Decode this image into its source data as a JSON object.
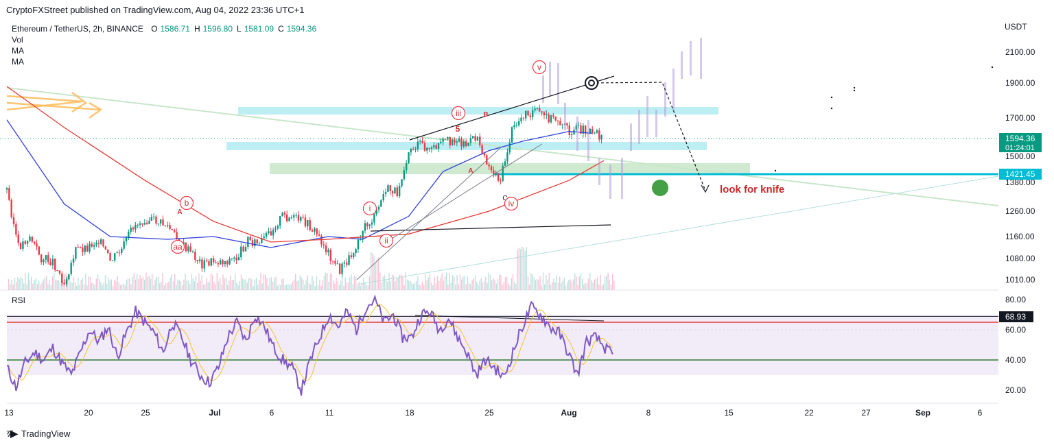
{
  "header": {
    "published": "CryptoFXStreet published on TradingView.com, Aug 04, 2022 23:36 UTC+1"
  },
  "legend": {
    "symbol": "Ethereum / TetherUS, 2h, BINANCE",
    "open_label": "O",
    "open": "1586.71",
    "high_label": "H",
    "high": "1596.80",
    "low_label": "L",
    "low": "1581.09",
    "close_label": "C",
    "close": "1594.36",
    "indicators": [
      "Vol",
      "MA",
      "MA"
    ]
  },
  "footer": {
    "brand": "TradingView",
    "logo": "tradingview-logo-icon"
  },
  "colors": {
    "up": "#089981",
    "down": "#f23645",
    "accent": "#00bcd4",
    "ma_fast": "#2f3fd8",
    "ma_slow": "#e53935",
    "rsi": "#7e57c2",
    "rsi_signal": "#fbc02d",
    "annotation": "#c2185b",
    "target_dot": "#43a047"
  },
  "chart_data": [
    {
      "type": "candlestick",
      "title": "Ethereum / TetherUS, 2h, BINANCE",
      "price_unit": "USDT",
      "y_ticks": [
        1010,
        1080,
        1160,
        1260,
        1380,
        1500,
        1700,
        1900,
        2100
      ],
      "y_tick_labels": [
        "1010.00",
        "1080.00",
        "1160.00",
        "1260.00",
        "1380.00",
        "1500.00",
        "1700.00",
        "1900.00",
        "2100.00"
      ],
      "x_tick_labels": [
        "13",
        "20",
        "25",
        "Jul",
        "6",
        "11",
        "18",
        "25",
        "Aug",
        "8",
        "15",
        "22",
        "27",
        "Sep",
        "6"
      ],
      "last_price": {
        "value": 1594.36,
        "label": "1594.36",
        "countdown": "01:24:01"
      },
      "horizontal_level": {
        "value": 1421.45,
        "label": "1421.45"
      },
      "price_path": [
        {
          "date": "Jun 13",
          "close": 1350
        },
        {
          "date": "Jun 14",
          "close": 1120
        },
        {
          "date": "Jun 15",
          "close": 1160
        },
        {
          "date": "Jun 16",
          "close": 1080
        },
        {
          "date": "Jun 17",
          "close": 1070
        },
        {
          "date": "Jun 18",
          "close": 1000
        },
        {
          "date": "Jun 19",
          "close": 1110
        },
        {
          "date": "Jun 20",
          "close": 1120
        },
        {
          "date": "Jun 21",
          "close": 1150
        },
        {
          "date": "Jun 22",
          "close": 1070
        },
        {
          "date": "Jun 23",
          "close": 1110
        },
        {
          "date": "Jun 24",
          "close": 1200
        },
        {
          "date": "Jun 25",
          "close": 1230
        },
        {
          "date": "Jun 26",
          "close": 1220
        },
        {
          "date": "Jun 27",
          "close": 1200
        },
        {
          "date": "Jun 28",
          "close": 1140
        },
        {
          "date": "Jun 29",
          "close": 1100
        },
        {
          "date": "Jun 30",
          "close": 1060
        },
        {
          "date": "Jul 1",
          "close": 1070
        },
        {
          "date": "Jul 2",
          "close": 1070
        },
        {
          "date": "Jul 3",
          "close": 1080
        },
        {
          "date": "Jul 4",
          "close": 1150
        },
        {
          "date": "Jul 5",
          "close": 1130
        },
        {
          "date": "Jul 6",
          "close": 1180
        },
        {
          "date": "Jul 7",
          "close": 1240
        },
        {
          "date": "Jul 8",
          "close": 1230
        },
        {
          "date": "Jul 9",
          "close": 1215
        },
        {
          "date": "Jul 10",
          "close": 1170
        },
        {
          "date": "Jul 11",
          "close": 1100
        },
        {
          "date": "Jul 12",
          "close": 1040
        },
        {
          "date": "Jul 13",
          "close": 1090
        },
        {
          "date": "Jul 14",
          "close": 1190
        },
        {
          "date": "Jul 15",
          "close": 1230
        },
        {
          "date": "Jul 16",
          "close": 1350
        },
        {
          "date": "Jul 17",
          "close": 1340
        },
        {
          "date": "Jul 18",
          "close": 1530
        },
        {
          "date": "Jul 19",
          "close": 1560
        },
        {
          "date": "Jul 20",
          "close": 1530
        },
        {
          "date": "Jul 21",
          "close": 1570
        },
        {
          "date": "Jul 22",
          "close": 1590
        },
        {
          "date": "Jul 23",
          "close": 1560
        },
        {
          "date": "Jul 24",
          "close": 1600
        },
        {
          "date": "Jul 25",
          "close": 1450
        },
        {
          "date": "Jul 26",
          "close": 1390
        },
        {
          "date": "Jul 27",
          "close": 1630
        },
        {
          "date": "Jul 28",
          "close": 1720
        },
        {
          "date": "Jul 29",
          "close": 1740
        },
        {
          "date": "Jul 30",
          "close": 1700
        },
        {
          "date": "Jul 31",
          "close": 1690
        },
        {
          "date": "Aug 1",
          "close": 1630
        },
        {
          "date": "Aug 2",
          "close": 1640
        },
        {
          "date": "Aug 3",
          "close": 1640
        },
        {
          "date": "Aug 4",
          "close": 1594.36
        }
      ],
      "moving_averages": [
        {
          "name": "MA",
          "color": "#2f3fd8",
          "path": [
            {
              "date": "Jun 13",
              "value": 1690
            },
            {
              "date": "Jun 18",
              "value": 1290
            },
            {
              "date": "Jun 22",
              "value": 1160
            },
            {
              "date": "Jun 27",
              "value": 1150
            },
            {
              "date": "Jul 1",
              "value": 1160
            },
            {
              "date": "Jul 6",
              "value": 1120
            },
            {
              "date": "Jul 11",
              "value": 1160
            },
            {
              "date": "Jul 14",
              "value": 1150
            },
            {
              "date": "Jul 18",
              "value": 1240
            },
            {
              "date": "Jul 21",
              "value": 1430
            },
            {
              "date": "Jul 25",
              "value": 1530
            },
            {
              "date": "Jul 28",
              "value": 1580
            },
            {
              "date": "Aug 1",
              "value": 1630
            },
            {
              "date": "Aug 3",
              "value": 1620
            }
          ]
        },
        {
          "name": "MA",
          "color": "#e53935",
          "path": [
            {
              "date": "Jun 13",
              "value": 1880
            },
            {
              "date": "Jun 18",
              "value": 1650
            },
            {
              "date": "Jun 25",
              "value": 1390
            },
            {
              "date": "Jul 1",
              "value": 1220
            },
            {
              "date": "Jul 6",
              "value": 1140
            },
            {
              "date": "Jul 11",
              "value": 1150
            },
            {
              "date": "Jul 18",
              "value": 1170
            },
            {
              "date": "Jul 25",
              "value": 1260
            },
            {
              "date": "Aug 1",
              "value": 1390
            },
            {
              "date": "Aug 4",
              "value": 1480
            }
          ]
        }
      ],
      "projected_bars_note": "ghost price projection toward ~2200"
    },
    {
      "type": "line",
      "title": "RSI",
      "y_ticks": [
        20,
        40,
        60,
        80
      ],
      "y_tick_labels": [
        "20.00",
        "40.00",
        "60.00",
        "80.00"
      ],
      "upper_band": 70,
      "lower_band": 30,
      "overbought_line": 68.93,
      "overbought_label": "68.93",
      "series": [
        {
          "values": [
            35,
            22,
            38,
            45,
            40,
            48,
            38,
            30,
            45,
            60,
            52,
            62,
            42,
            58,
            72,
            65,
            58,
            45,
            65,
            55,
            40,
            30,
            25,
            35,
            55,
            65,
            52,
            70,
            62,
            48,
            40,
            35,
            20,
            40,
            55,
            70,
            62,
            72,
            60,
            75,
            80,
            65,
            70,
            55,
            55,
            70,
            72,
            60,
            68,
            55,
            45,
            30,
            40,
            35,
            28,
            45,
            62,
            75,
            70,
            62,
            58,
            45,
            30,
            52,
            55,
            48,
            42
          ]
        }
      ]
    }
  ],
  "annotations": {
    "waves": [
      "v",
      "iii",
      "5",
      "B",
      "A",
      "C",
      "iv",
      "i",
      "ii",
      "b",
      "A",
      "aa"
    ],
    "note": "look for knife"
  }
}
